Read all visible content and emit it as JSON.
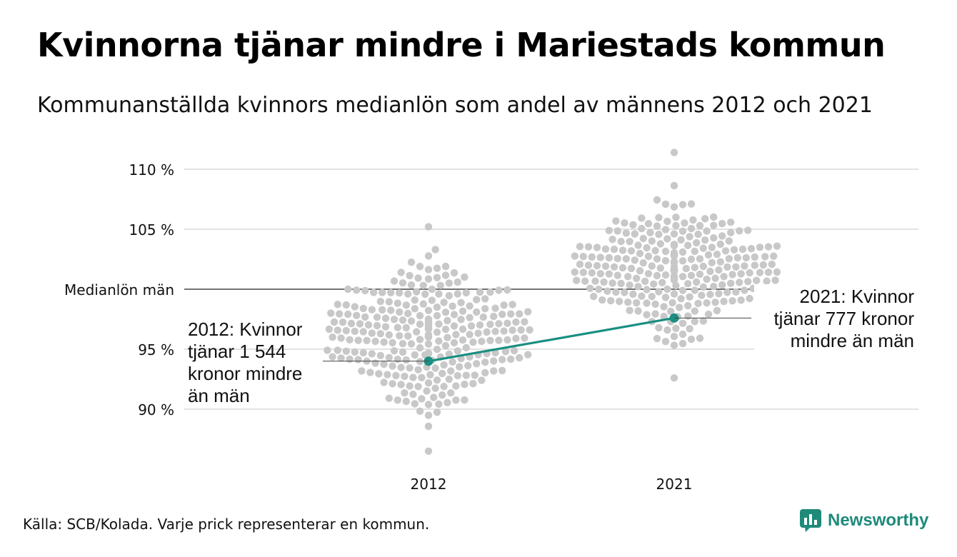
{
  "title": "Kvinnorna tjänar mindre i Mariestads kommun",
  "subtitle": "Kommunanställda kvinnors medianlön som andel av männens 2012 och 2021",
  "source": "Källa: SCB/Kolada. Varje prick representerar en kommun.",
  "brand": {
    "name": "Newsworthy",
    "icon": "chart-bubble-icon",
    "color": "#1f8a7a"
  },
  "colors": {
    "dots": "#c8c8c8",
    "highlight": "#1a8f82",
    "grid": "#e2e2e2",
    "reference": "#222222"
  },
  "chart_data": {
    "type": "scatter",
    "title": "Kvinnorna tjänar mindre i Mariestads kommun",
    "subtitle": "Kommunanställda kvinnors medianlön som andel av männens 2012 och 2021",
    "x_categories": [
      "2012",
      "2021"
    ],
    "y_ticks": [
      {
        "value": 110,
        "label": "110 %"
      },
      {
        "value": 105,
        "label": "105 %"
      },
      {
        "value": 95,
        "label": "95 %"
      },
      {
        "value": 90,
        "label": "90 %"
      }
    ],
    "ylim": [
      86.5,
      111.5
    ],
    "grid": true,
    "reference_line": {
      "value": 100,
      "label": "Medianlön män"
    },
    "highlight": {
      "name": "Mariestad",
      "values": [
        {
          "x": "2012",
          "y": 94.0
        },
        {
          "x": "2021",
          "y": 97.6
        }
      ],
      "annotations": [
        {
          "x": "2012",
          "lines": [
            "2012: Kvinnor",
            "tjänar 1 544",
            "kronor mindre",
            "än män"
          ]
        },
        {
          "x": "2021",
          "lines": [
            "2021: Kvinnor",
            "tjänar 777 kronor",
            "mindre än män"
          ]
        }
      ]
    },
    "distribution_note": "Varje prick representerar en kommun.",
    "distributions": [
      {
        "x": "2012",
        "count": 290,
        "min": 86.5,
        "max": 105.2,
        "median": 96.0
      },
      {
        "x": "2021",
        "count": 290,
        "min": 92.6,
        "max": 111.4,
        "median": 101.6
      }
    ]
  }
}
